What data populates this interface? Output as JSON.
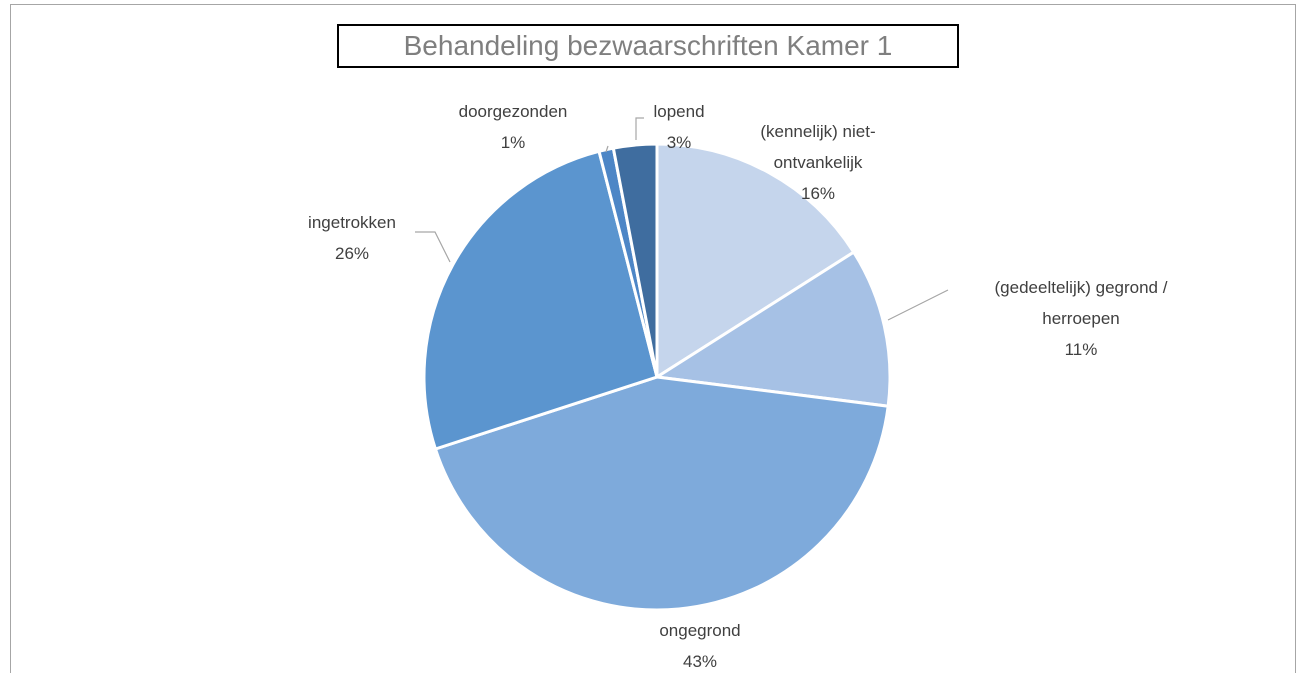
{
  "chart_data": {
    "type": "pie",
    "title": "Behandeling bezwaarschriften Kamer 1",
    "categories": [
      "(kennelijk) niet-ontvankelijk",
      "(gedeeltelijk) gegrond / herroepen",
      "ongegrond",
      "ingetrokken",
      "doorgezonden",
      "lopend"
    ],
    "values": [
      16,
      11,
      43,
      26,
      1,
      3
    ],
    "value_labels": [
      "16%",
      "11%",
      "43%",
      "26%",
      "1%",
      "3%"
    ],
    "colors": [
      "#c5d5ec",
      "#a6c1e5",
      "#7eaadb",
      "#5b95cf",
      "#4d86c6",
      "#3f6d9f"
    ]
  }
}
